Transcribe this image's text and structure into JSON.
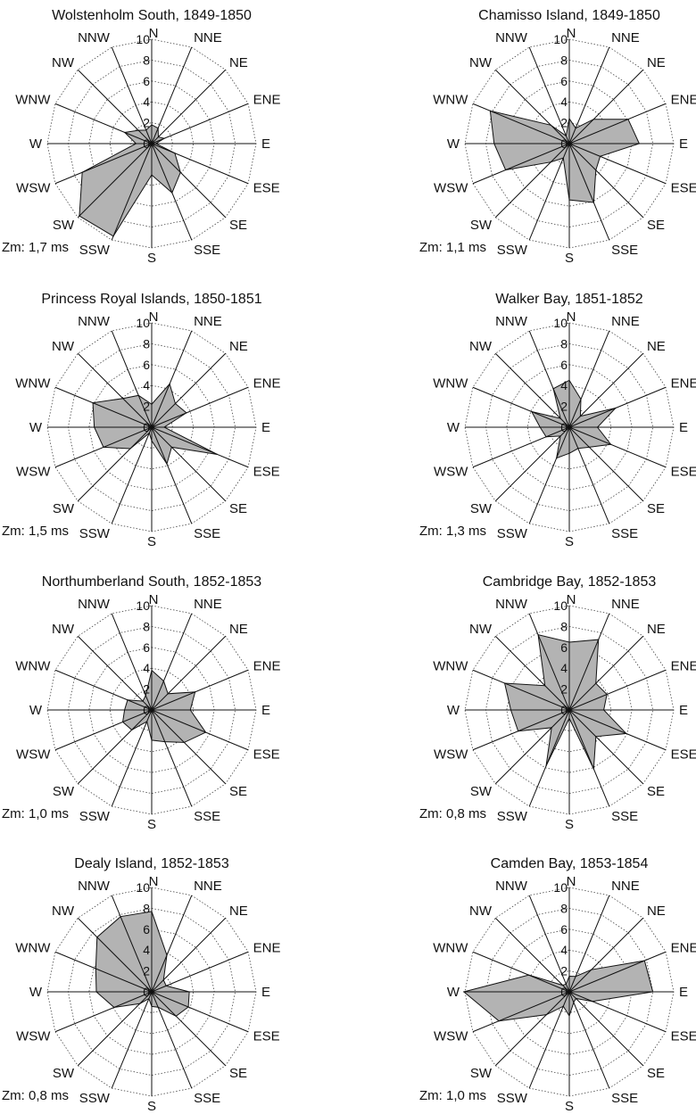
{
  "colors": {
    "fill": "#b3b3b3",
    "line": "#111111",
    "grid": "#444444"
  },
  "directions": [
    "N",
    "NNE",
    "NE",
    "ENE",
    "E",
    "ESE",
    "SE",
    "SSE",
    "S",
    "SSW",
    "SW",
    "WSW",
    "W",
    "WNW",
    "NW",
    "NNW"
  ],
  "ticks": [
    "0",
    "2",
    "4",
    "6",
    "8",
    "10"
  ],
  "chart_data": [
    {
      "type": "radar",
      "title": "Wolstenholm South, 1849-1850",
      "calm": "Zm: 1,7 ms",
      "rmax": 10,
      "grid_step": 2,
      "values": [
        1.8,
        1.6,
        0.9,
        1.3,
        0.4,
        2.4,
        3.9,
        5.1,
        3.0,
        9.6,
        9.8,
        7.2,
        1.5,
        2.8,
        1.8,
        1.4
      ]
    },
    {
      "type": "radar",
      "title": "Chamisso Island, 1849-1850",
      "calm": "Zm: 1,1 ms",
      "rmax": 10,
      "grid_step": 2,
      "values": [
        2.4,
        1.6,
        3.3,
        6.1,
        6.7,
        3.2,
        3.6,
        6.1,
        5.4,
        1.5,
        2.5,
        6.6,
        7.2,
        8.2,
        2.5,
        0.8
      ]
    },
    {
      "type": "radar",
      "title": "Princess Royal Islands, 1850-1851",
      "calm": "Zm: 1,5 ms",
      "rmax": 10,
      "grid_step": 2,
      "values": [
        2.2,
        4.5,
        3.2,
        3.6,
        1.2,
        6.8,
        2.7,
        3.8,
        1.3,
        0.6,
        2.9,
        5.0,
        5.5,
        6.1,
        3.9,
        3.3
      ]
    },
    {
      "type": "radar",
      "title": "Walker Bay, 1851-1852",
      "calm": "Zm: 1,3 ms",
      "rmax": 10,
      "grid_step": 2,
      "values": [
        4.5,
        2.9,
        1.5,
        4.8,
        2.7,
        4.3,
        2.7,
        2.2,
        2.5,
        3.2,
        1.2,
        2.4,
        2.8,
        3.9,
        1.2,
        4.0
      ]
    },
    {
      "type": "radar",
      "title": "Northumberland South, 1852-1853",
      "calm": "Zm: 1,0 ms",
      "rmax": 10,
      "grid_step": 2,
      "values": [
        3.8,
        3.0,
        2.2,
        4.5,
        3.7,
        5.6,
        4.4,
        3.3,
        2.9,
        1.2,
        2.7,
        3.0,
        2.6,
        2.5,
        1.2,
        1.5
      ]
    },
    {
      "type": "radar",
      "title": "Cambridge Bay, 1852-1853",
      "calm": "Zm: 0,8 ms",
      "rmax": 10,
      "grid_step": 2,
      "values": [
        6.5,
        7.3,
        3.6,
        3.9,
        3.3,
        5.9,
        3.6,
        6.1,
        0.8,
        5.8,
        2.4,
        5.3,
        5.6,
        6.7,
        3.3,
        7.8
      ]
    },
    {
      "type": "radar",
      "title": "Dealy Island, 1852-1853",
      "calm": "Zm: 0,8 ms",
      "rmax": 10,
      "grid_step": 2,
      "values": [
        7.7,
        3.8,
        1.6,
        1.5,
        3.6,
        3.8,
        3.3,
        1.6,
        1.4,
        0.7,
        1.6,
        3.9,
        5.3,
        5.8,
        7.4,
        7.8
      ]
    },
    {
      "type": "radar",
      "title": "Camden Bay, 1853-1854",
      "calm": "Zm: 1,0 ms",
      "rmax": 10,
      "grid_step": 2,
      "values": [
        1.5,
        1.6,
        3.0,
        7.8,
        8.0,
        2.4,
        0.9,
        1.1,
        2.3,
        1.5,
        3.1,
        7.3,
        10.1,
        4.2,
        0.9,
        0.8
      ]
    }
  ]
}
